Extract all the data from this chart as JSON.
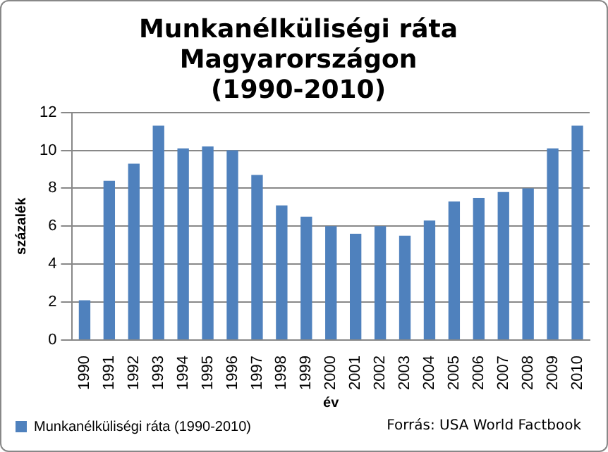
{
  "chart_data": {
    "type": "bar",
    "title": "Munkanélküliségi ráta Magyarországon (1990-2010)",
    "xlabel": "év",
    "ylabel": "százalék",
    "categories": [
      "1990",
      "1991",
      "1992",
      "1993",
      "1994",
      "1995",
      "1996",
      "1997",
      "1998",
      "1999",
      "2000",
      "2001",
      "2002",
      "2003",
      "2004",
      "2005",
      "2006",
      "2007",
      "2008",
      "2009",
      "2010"
    ],
    "series": [
      {
        "name": "Munkanélküliségi ráta (1990-2010)",
        "color": "#4f81bd",
        "values": [
          2.1,
          8.4,
          9.3,
          11.3,
          10.1,
          10.2,
          10.0,
          8.7,
          7.1,
          6.5,
          6.0,
          5.6,
          6.0,
          5.5,
          6.3,
          7.3,
          7.5,
          7.8,
          8.0,
          10.1,
          11.3
        ]
      }
    ],
    "ylim": [
      0,
      12
    ],
    "yticks": [
      0,
      2,
      4,
      6,
      8,
      10,
      12
    ],
    "grid": "y",
    "legend": "bottom",
    "annotations": [
      "Forrás: USA World Factbook"
    ]
  }
}
